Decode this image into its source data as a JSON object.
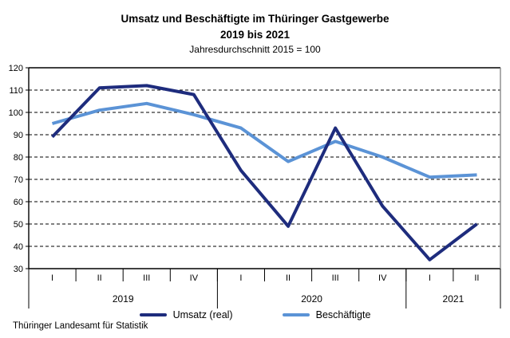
{
  "title": {
    "line1": "Umsatz und Beschäftigte im Thüringer Gastgewerbe",
    "line2": "2019 bis 2021",
    "subtitle": "Jahresdurchschnitt 2015 = 100"
  },
  "chart_data": {
    "type": "line",
    "categories": [
      "2019 I",
      "2019 II",
      "2019 III",
      "2019 IV",
      "2020 I",
      "2020 II",
      "2020 III",
      "2020 IV",
      "2021 I",
      "2021 II"
    ],
    "quarter_labels": [
      "I",
      "II",
      "III",
      "IV",
      "I",
      "II",
      "III",
      "IV",
      "I",
      "II"
    ],
    "year_groups": [
      {
        "label": "2019",
        "span": 4
      },
      {
        "label": "2020",
        "span": 4
      },
      {
        "label": "2021",
        "span": 2
      }
    ],
    "series": [
      {
        "name": "Umsatz (real)",
        "color": "#1e2c7d",
        "values": [
          89,
          111,
          112,
          108,
          74,
          49,
          93,
          58,
          34,
          50
        ]
      },
      {
        "name": "Beschäftigte",
        "color": "#5b93d6",
        "values": [
          95,
          101,
          104,
          99,
          93,
          78,
          87,
          80,
          71,
          72
        ]
      }
    ],
    "ylim": [
      30,
      120
    ],
    "ytick_step": 10,
    "ytick_labels": [
      "120",
      "110",
      "100",
      "90",
      "80",
      "70",
      "60",
      "50",
      "40",
      "30"
    ],
    "grid": "horizontal-dashed",
    "legend_position": "bottom",
    "axis_color": "#000000",
    "right_border_color": "#888888"
  },
  "footer": {
    "source": "Thüringer Landesamt für Statistik"
  }
}
